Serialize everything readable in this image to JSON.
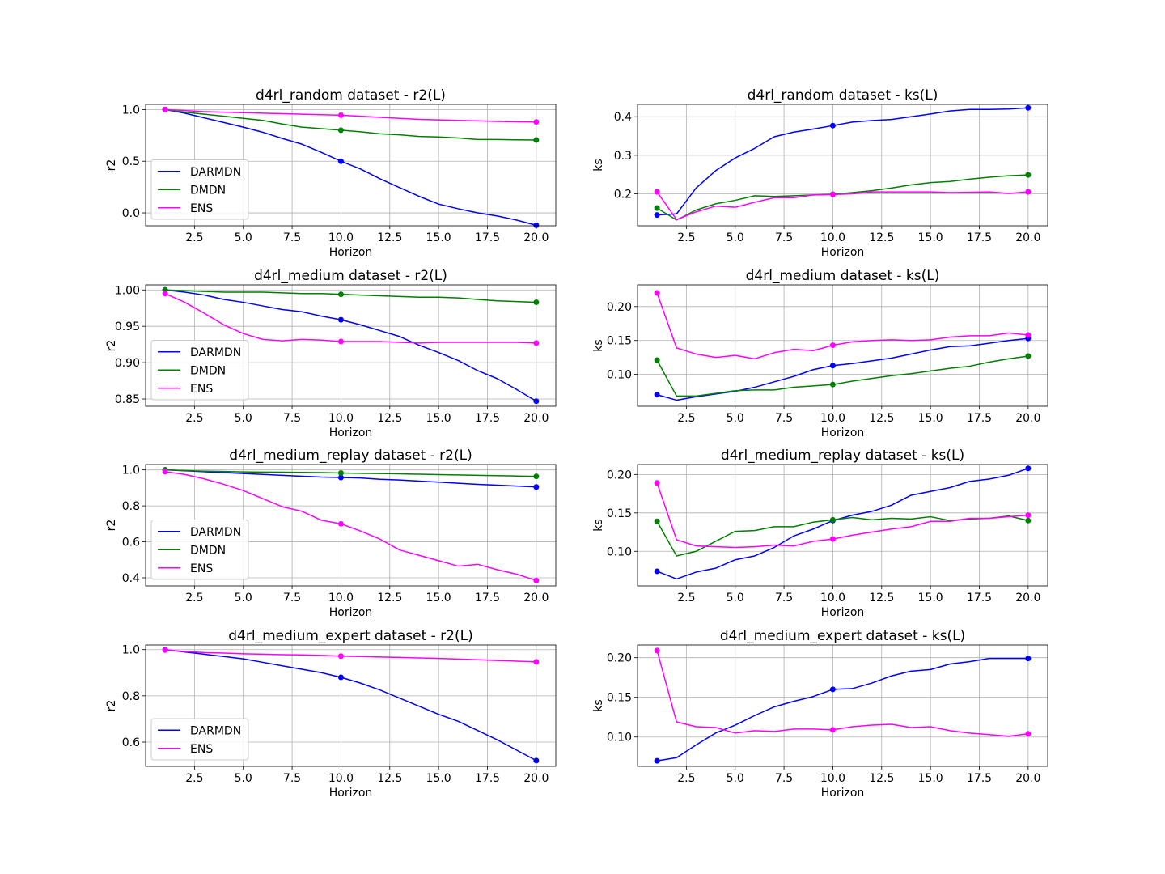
{
  "colors": {
    "DARMDN": "#0000ff",
    "DMDN": "#008000",
    "ENS": "#ff00ff"
  },
  "chart_data": [
    {
      "type": "line",
      "title": "d4rl_random dataset - r2(L)",
      "xlabel": "Horizon",
      "ylabel": "r2",
      "xlim": [
        0,
        21
      ],
      "ylim": [
        -0.125,
        1.05
      ],
      "xticks": [
        "2.5",
        "5.0",
        "7.5",
        "10.0",
        "12.5",
        "15.0",
        "17.5",
        "20.0"
      ],
      "yticks": [
        "0.0",
        "0.5",
        "1.0"
      ],
      "grid": true,
      "legend": "lower-left",
      "x": [
        1,
        2,
        3,
        4,
        5,
        6,
        7,
        8,
        9,
        10,
        11,
        12,
        13,
        14,
        15,
        16,
        17,
        18,
        19,
        20
      ],
      "markers_at": [
        1,
        10,
        20
      ],
      "series": [
        {
          "name": "DARMDN",
          "values": [
            1.0,
            0.965,
            0.92,
            0.875,
            0.83,
            0.78,
            0.72,
            0.665,
            0.585,
            0.5,
            0.425,
            0.33,
            0.245,
            0.16,
            0.085,
            0.04,
            0.0,
            -0.03,
            -0.07,
            -0.12
          ]
        },
        {
          "name": "DMDN",
          "values": [
            1.0,
            0.975,
            0.955,
            0.935,
            0.915,
            0.895,
            0.86,
            0.83,
            0.815,
            0.8,
            0.785,
            0.765,
            0.755,
            0.74,
            0.735,
            0.725,
            0.71,
            0.71,
            0.707,
            0.705
          ]
        },
        {
          "name": "ENS",
          "values": [
            1.0,
            0.99,
            0.98,
            0.975,
            0.97,
            0.965,
            0.96,
            0.955,
            0.95,
            0.945,
            0.935,
            0.925,
            0.915,
            0.905,
            0.9,
            0.895,
            0.89,
            0.885,
            0.882,
            0.88
          ]
        }
      ]
    },
    {
      "type": "line",
      "title": "d4rl_random dataset - ks(L)",
      "xlabel": "Horizon",
      "ylabel": "ks",
      "xlim": [
        0,
        21
      ],
      "ylim": [
        0.117,
        0.432
      ],
      "xticks": [
        "2.5",
        "5.0",
        "7.5",
        "10.0",
        "12.5",
        "15.0",
        "17.5",
        "20.0"
      ],
      "yticks": [
        "0.2",
        "0.3",
        "0.4"
      ],
      "grid": true,
      "legend": "none",
      "x": [
        1,
        2,
        3,
        4,
        5,
        6,
        7,
        8,
        9,
        10,
        11,
        12,
        13,
        14,
        15,
        16,
        17,
        18,
        19,
        20
      ],
      "markers_at": [
        1,
        10,
        20
      ],
      "series": [
        {
          "name": "DARMDN",
          "values": [
            0.145,
            0.148,
            0.215,
            0.26,
            0.293,
            0.318,
            0.348,
            0.36,
            0.368,
            0.377,
            0.386,
            0.39,
            0.393,
            0.4,
            0.407,
            0.415,
            0.419,
            0.419,
            0.42,
            0.423
          ]
        },
        {
          "name": "DMDN",
          "values": [
            0.163,
            0.132,
            0.158,
            0.174,
            0.183,
            0.195,
            0.193,
            0.195,
            0.197,
            0.199,
            0.203,
            0.208,
            0.215,
            0.223,
            0.229,
            0.232,
            0.238,
            0.243,
            0.247,
            0.249
          ]
        },
        {
          "name": "ENS",
          "values": [
            0.205,
            0.133,
            0.153,
            0.168,
            0.165,
            0.178,
            0.19,
            0.19,
            0.197,
            0.198,
            0.2,
            0.205,
            0.205,
            0.205,
            0.205,
            0.203,
            0.204,
            0.205,
            0.201,
            0.205
          ]
        }
      ]
    },
    {
      "type": "line",
      "title": "d4rl_medium dataset - r2(L)",
      "xlabel": "Horizon",
      "ylabel": "r2",
      "xlim": [
        0,
        21
      ],
      "ylim": [
        0.84,
        1.007
      ],
      "xticks": [
        "2.5",
        "5.0",
        "7.5",
        "10.0",
        "12.5",
        "15.0",
        "17.5",
        "20.0"
      ],
      "yticks": [
        "0.85",
        "0.90",
        "0.95",
        "1.00"
      ],
      "grid": true,
      "legend": "lower-left",
      "x": [
        1,
        2,
        3,
        4,
        5,
        6,
        7,
        8,
        9,
        10,
        11,
        12,
        13,
        14,
        15,
        16,
        17,
        18,
        19,
        20
      ],
      "markers_at": [
        1,
        10,
        20
      ],
      "series": [
        {
          "name": "DARMDN",
          "values": [
            1.0,
            0.997,
            0.993,
            0.987,
            0.983,
            0.978,
            0.973,
            0.97,
            0.964,
            0.959,
            0.952,
            0.944,
            0.936,
            0.924,
            0.914,
            0.903,
            0.889,
            0.878,
            0.863,
            0.847
          ]
        },
        {
          "name": "DMDN",
          "values": [
            1.0,
            0.999,
            0.998,
            0.997,
            0.997,
            0.997,
            0.996,
            0.995,
            0.995,
            0.994,
            0.993,
            0.992,
            0.991,
            0.99,
            0.99,
            0.989,
            0.987,
            0.985,
            0.984,
            0.983
          ]
        },
        {
          "name": "ENS",
          "values": [
            0.995,
            0.983,
            0.968,
            0.952,
            0.94,
            0.932,
            0.93,
            0.932,
            0.931,
            0.929,
            0.929,
            0.929,
            0.928,
            0.927,
            0.928,
            0.928,
            0.928,
            0.928,
            0.928,
            0.927
          ]
        }
      ]
    },
    {
      "type": "line",
      "title": "d4rl_medium dataset - ks(L)",
      "xlabel": "Horizon",
      "ylabel": "ks",
      "xlim": [
        0,
        21
      ],
      "ylim": [
        0.053,
        0.232
      ],
      "xticks": [
        "2.5",
        "5.0",
        "7.5",
        "10.0",
        "12.5",
        "15.0",
        "17.5",
        "20.0"
      ],
      "yticks": [
        "0.10",
        "0.15",
        "0.20"
      ],
      "grid": true,
      "legend": "none",
      "x": [
        1,
        2,
        3,
        4,
        5,
        6,
        7,
        8,
        9,
        10,
        11,
        12,
        13,
        14,
        15,
        16,
        17,
        18,
        19,
        20
      ],
      "markers_at": [
        1,
        10,
        20
      ],
      "series": [
        {
          "name": "DARMDN",
          "values": [
            0.07,
            0.062,
            0.067,
            0.071,
            0.075,
            0.081,
            0.089,
            0.097,
            0.107,
            0.113,
            0.116,
            0.12,
            0.124,
            0.13,
            0.136,
            0.141,
            0.142,
            0.146,
            0.15,
            0.153
          ]
        },
        {
          "name": "DMDN",
          "values": [
            0.121,
            0.068,
            0.068,
            0.072,
            0.076,
            0.077,
            0.077,
            0.081,
            0.083,
            0.085,
            0.09,
            0.094,
            0.098,
            0.101,
            0.105,
            0.109,
            0.112,
            0.118,
            0.123,
            0.127
          ]
        },
        {
          "name": "ENS",
          "values": [
            0.22,
            0.139,
            0.13,
            0.125,
            0.128,
            0.123,
            0.132,
            0.137,
            0.135,
            0.143,
            0.148,
            0.15,
            0.151,
            0.15,
            0.151,
            0.155,
            0.157,
            0.157,
            0.161,
            0.158
          ]
        }
      ]
    },
    {
      "type": "line",
      "title": "d4rl_medium_replay dataset - r2(L)",
      "xlabel": "Horizon",
      "ylabel": "r2",
      "xlim": [
        0,
        21
      ],
      "ylim": [
        0.355,
        1.03
      ],
      "xticks": [
        "2.5",
        "5.0",
        "7.5",
        "10.0",
        "12.5",
        "15.0",
        "17.5",
        "20.0"
      ],
      "yticks": [
        "0.4",
        "0.6",
        "0.8",
        "1.0"
      ],
      "grid": true,
      "legend": "lower-left",
      "x": [
        1,
        2,
        3,
        4,
        5,
        6,
        7,
        8,
        9,
        10,
        11,
        12,
        13,
        14,
        15,
        16,
        17,
        18,
        19,
        20
      ],
      "markers_at": [
        1,
        10,
        20
      ],
      "series": [
        {
          "name": "DARMDN",
          "values": [
            1.0,
            0.995,
            0.99,
            0.985,
            0.98,
            0.975,
            0.97,
            0.965,
            0.96,
            0.958,
            0.955,
            0.948,
            0.944,
            0.938,
            0.932,
            0.926,
            0.92,
            0.915,
            0.91,
            0.905
          ]
        },
        {
          "name": "DMDN",
          "values": [
            1.0,
            0.996,
            0.993,
            0.991,
            0.989,
            0.988,
            0.987,
            0.986,
            0.985,
            0.983,
            0.981,
            0.98,
            0.978,
            0.976,
            0.974,
            0.972,
            0.97,
            0.968,
            0.966,
            0.964
          ]
        },
        {
          "name": "ENS",
          "values": [
            0.99,
            0.975,
            0.95,
            0.92,
            0.885,
            0.84,
            0.795,
            0.77,
            0.72,
            0.7,
            0.66,
            0.615,
            0.555,
            0.525,
            0.495,
            0.465,
            0.475,
            0.445,
            0.42,
            0.385
          ]
        }
      ]
    },
    {
      "type": "line",
      "title": "d4rl_medium_replay dataset - ks(L)",
      "xlabel": "Horizon",
      "ylabel": "ks",
      "xlim": [
        0,
        21
      ],
      "ylim": [
        0.055,
        0.213
      ],
      "xticks": [
        "2.5",
        "5.0",
        "7.5",
        "10.0",
        "12.5",
        "15.0",
        "17.5",
        "20.0"
      ],
      "yticks": [
        "0.10",
        "0.15",
        "0.20"
      ],
      "grid": true,
      "legend": "none",
      "x": [
        1,
        2,
        3,
        4,
        5,
        6,
        7,
        8,
        9,
        10,
        11,
        12,
        13,
        14,
        15,
        16,
        17,
        18,
        19,
        20
      ],
      "markers_at": [
        1,
        10,
        20
      ],
      "series": [
        {
          "name": "DARMDN",
          "values": [
            0.074,
            0.064,
            0.073,
            0.078,
            0.089,
            0.094,
            0.105,
            0.12,
            0.129,
            0.14,
            0.147,
            0.152,
            0.16,
            0.173,
            0.178,
            0.183,
            0.191,
            0.194,
            0.199,
            0.208
          ]
        },
        {
          "name": "DMDN",
          "values": [
            0.139,
            0.094,
            0.1,
            0.113,
            0.126,
            0.127,
            0.132,
            0.132,
            0.138,
            0.141,
            0.144,
            0.141,
            0.143,
            0.142,
            0.145,
            0.14,
            0.142,
            0.143,
            0.146,
            0.14
          ]
        },
        {
          "name": "ENS",
          "values": [
            0.189,
            0.115,
            0.107,
            0.106,
            0.105,
            0.106,
            0.108,
            0.107,
            0.113,
            0.116,
            0.121,
            0.125,
            0.129,
            0.132,
            0.139,
            0.139,
            0.143,
            0.143,
            0.145,
            0.147
          ]
        }
      ]
    },
    {
      "type": "line",
      "title": "d4rl_medium_expert dataset - r2(L)",
      "xlabel": "Horizon",
      "ylabel": "r2",
      "xlim": [
        0,
        21
      ],
      "ylim": [
        0.495,
        1.02
      ],
      "xticks": [
        "2.5",
        "5.0",
        "7.5",
        "10.0",
        "12.5",
        "15.0",
        "17.5",
        "20.0"
      ],
      "yticks": [
        "0.6",
        "0.8",
        "1.0"
      ],
      "grid": true,
      "legend": "lower-left",
      "x": [
        1,
        2,
        3,
        4,
        5,
        6,
        7,
        8,
        9,
        10,
        11,
        12,
        13,
        14,
        15,
        16,
        17,
        18,
        19,
        20
      ],
      "markers_at": [
        1,
        10,
        20
      ],
      "series": [
        {
          "name": "DARMDN",
          "values": [
            1.0,
            0.99,
            0.98,
            0.97,
            0.96,
            0.945,
            0.93,
            0.915,
            0.9,
            0.88,
            0.855,
            0.825,
            0.79,
            0.755,
            0.72,
            0.69,
            0.65,
            0.61,
            0.565,
            0.52
          ]
        },
        {
          "name": "ENS",
          "values": [
            0.998,
            0.992,
            0.987,
            0.985,
            0.982,
            0.98,
            0.978,
            0.977,
            0.975,
            0.972,
            0.97,
            0.968,
            0.966,
            0.964,
            0.962,
            0.959,
            0.956,
            0.953,
            0.95,
            0.947
          ]
        }
      ]
    },
    {
      "type": "line",
      "title": "d4rl_medium_expert dataset - ks(L)",
      "xlabel": "Horizon",
      "ylabel": "ks",
      "xlim": [
        0,
        21
      ],
      "ylim": [
        0.063,
        0.216
      ],
      "xticks": [
        "2.5",
        "5.0",
        "7.5",
        "10.0",
        "12.5",
        "15.0",
        "17.5",
        "20.0"
      ],
      "yticks": [
        "0.10",
        "0.15",
        "0.20"
      ],
      "grid": true,
      "legend": "none",
      "x": [
        1,
        2,
        3,
        4,
        5,
        6,
        7,
        8,
        9,
        10,
        11,
        12,
        13,
        14,
        15,
        16,
        17,
        18,
        19,
        20
      ],
      "markers_at": [
        1,
        10,
        20
      ],
      "series": [
        {
          "name": "DARMDN",
          "values": [
            0.07,
            0.074,
            0.09,
            0.105,
            0.115,
            0.127,
            0.138,
            0.145,
            0.151,
            0.16,
            0.161,
            0.168,
            0.177,
            0.183,
            0.185,
            0.192,
            0.195,
            0.199,
            0.199,
            0.199
          ]
        },
        {
          "name": "ENS",
          "values": [
            0.209,
            0.119,
            0.113,
            0.112,
            0.105,
            0.108,
            0.107,
            0.11,
            0.11,
            0.109,
            0.113,
            0.115,
            0.116,
            0.112,
            0.113,
            0.108,
            0.105,
            0.103,
            0.101,
            0.104
          ]
        }
      ]
    }
  ]
}
